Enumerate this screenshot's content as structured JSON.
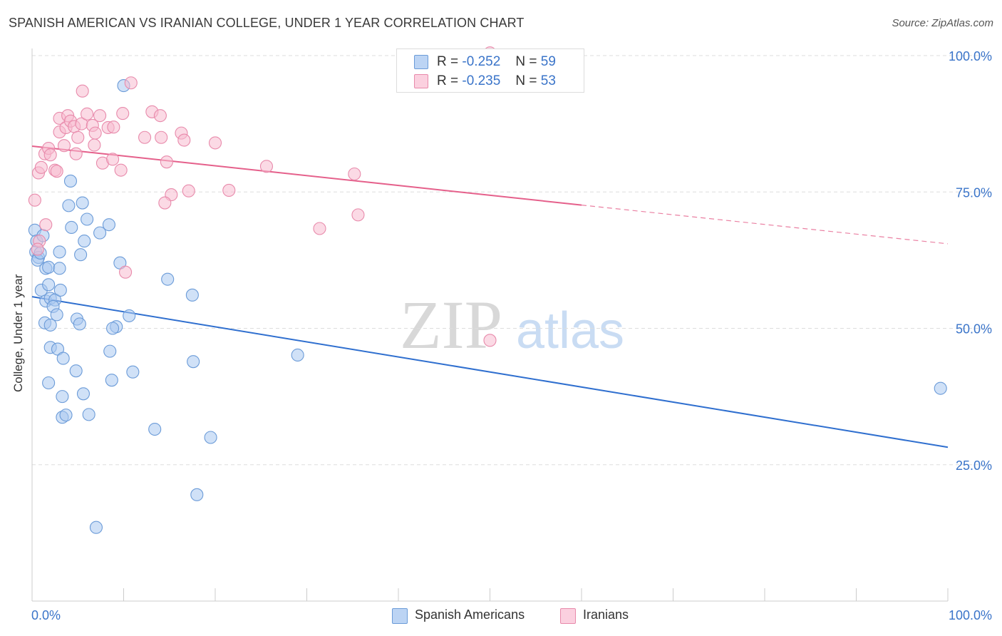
{
  "title": "SPANISH AMERICAN VS IRANIAN COLLEGE, UNDER 1 YEAR CORRELATION CHART",
  "source": "Source: ZipAtlas.com",
  "watermark": {
    "zip": "ZIP",
    "atlas": "atlas"
  },
  "legend_top": {
    "rows": [
      {
        "r_label": "R =",
        "r_value": "-0.252",
        "n_label": "N =",
        "n_value": "59"
      },
      {
        "r_label": "R =",
        "r_value": "-0.235",
        "n_label": "N =",
        "n_value": "53"
      }
    ]
  },
  "legend_bottom": [
    "Spanish Americans",
    "Iranians"
  ],
  "colors": {
    "blue_fill": "#a9c8f0",
    "blue_stroke": "#6b9bd8",
    "blue_line": "#2f6fcf",
    "pink_fill": "#f7bcd0",
    "pink_stroke": "#e88aab",
    "pink_line": "#e5608b",
    "tick_label": "#3a74c9",
    "grid": "#dddddd"
  },
  "chart_data": {
    "type": "scatter",
    "title": "SPANISH AMERICAN VS IRANIAN COLLEGE, UNDER 1 YEAR CORRELATION CHART",
    "xlabel": "",
    "ylabel": "College, Under 1 year",
    "xlim": [
      0,
      100
    ],
    "ylim": [
      0,
      105
    ],
    "x_tick_labels": [
      {
        "value": 0,
        "label": "0.0%"
      },
      {
        "value": 100,
        "label": "100.0%"
      }
    ],
    "y_tick_labels": [
      {
        "value": 25,
        "label": "25.0%"
      },
      {
        "value": 50,
        "label": "50.0%"
      },
      {
        "value": 75,
        "label": "75.0%"
      },
      {
        "value": 100,
        "label": "100.0%"
      }
    ],
    "series": [
      {
        "name": "Spanish Americans",
        "r": -0.252,
        "n": 59,
        "trend": {
          "x0": 0,
          "y0": 55.8,
          "x1": 100,
          "y1": 28.2
        },
        "points": [
          [
            0.3,
            68
          ],
          [
            0.5,
            66
          ],
          [
            0.4,
            64
          ],
          [
            0.7,
            63
          ],
          [
            0.6,
            62.5
          ],
          [
            1.2,
            67
          ],
          [
            1.5,
            61
          ],
          [
            1.8,
            61.2
          ],
          [
            1.0,
            57
          ],
          [
            1.5,
            55
          ],
          [
            2.0,
            55.5
          ],
          [
            2.5,
            55.2
          ],
          [
            2.3,
            54
          ],
          [
            1.4,
            51
          ],
          [
            2.0,
            50.6
          ],
          [
            2.7,
            52.5
          ],
          [
            3.0,
            64
          ],
          [
            3.1,
            57
          ],
          [
            4.2,
            77
          ],
          [
            4.0,
            72.5
          ],
          [
            4.3,
            68.5
          ],
          [
            5.5,
            73
          ],
          [
            5.7,
            66
          ],
          [
            5.3,
            63.5
          ],
          [
            6.0,
            70
          ],
          [
            7.4,
            67.5
          ],
          [
            8.4,
            69
          ],
          [
            9.6,
            62
          ],
          [
            10.0,
            94.5
          ],
          [
            9.2,
            50.3
          ],
          [
            8.8,
            50
          ],
          [
            10.6,
            52.3
          ],
          [
            2.0,
            46.5
          ],
          [
            2.8,
            46.2
          ],
          [
            3.4,
            44.5
          ],
          [
            4.9,
            51.7
          ],
          [
            5.2,
            50.8
          ],
          [
            8.5,
            45.8
          ],
          [
            11.0,
            42
          ],
          [
            4.8,
            42.2
          ],
          [
            1.8,
            40
          ],
          [
            3.3,
            37.5
          ],
          [
            5.6,
            38
          ],
          [
            8.7,
            40.5
          ],
          [
            17.6,
            43.9
          ],
          [
            29.0,
            45.1
          ],
          [
            14.8,
            59
          ],
          [
            17.5,
            56.1
          ],
          [
            3.3,
            33.7
          ],
          [
            3.7,
            34.1
          ],
          [
            6.2,
            34.2
          ],
          [
            13.4,
            31.5
          ],
          [
            19.5,
            30
          ],
          [
            18.0,
            19.5
          ],
          [
            7.0,
            13.5
          ],
          [
            99.2,
            39
          ],
          [
            1.8,
            58
          ],
          [
            3.0,
            61
          ],
          [
            0.9,
            63.8
          ]
        ]
      },
      {
        "name": "Iranians",
        "r": -0.235,
        "n": 53,
        "trend": {
          "x0": 0,
          "y0": 83.4,
          "x1": 60,
          "y1": 72.6
        },
        "trend_dashed": {
          "x0": 60,
          "y0": 72.6,
          "x1": 100,
          "y1": 65.5
        },
        "points": [
          [
            0.3,
            73.5
          ],
          [
            0.7,
            78.5
          ],
          [
            1.0,
            79.5
          ],
          [
            1.4,
            82
          ],
          [
            1.8,
            83
          ],
          [
            2.0,
            81.8
          ],
          [
            2.5,
            79
          ],
          [
            2.7,
            78.8
          ],
          [
            3.0,
            86
          ],
          [
            3.0,
            88.5
          ],
          [
            3.5,
            83.5
          ],
          [
            3.7,
            86.8
          ],
          [
            3.9,
            89
          ],
          [
            4.2,
            88
          ],
          [
            4.6,
            87
          ],
          [
            4.8,
            82
          ],
          [
            5.0,
            85
          ],
          [
            5.4,
            87.5
          ],
          [
            5.5,
            93.5
          ],
          [
            6.0,
            89.3
          ],
          [
            6.6,
            87.2
          ],
          [
            6.8,
            83.6
          ],
          [
            6.9,
            85.8
          ],
          [
            7.4,
            89
          ],
          [
            7.7,
            80.3
          ],
          [
            8.3,
            86.8
          ],
          [
            8.8,
            81
          ],
          [
            8.9,
            86.9
          ],
          [
            9.7,
            79
          ],
          [
            9.9,
            89.4
          ],
          [
            10.8,
            95
          ],
          [
            12.3,
            85
          ],
          [
            13.1,
            89.7
          ],
          [
            14.0,
            89
          ],
          [
            14.1,
            85
          ],
          [
            14.7,
            80.5
          ],
          [
            15.2,
            74.5
          ],
          [
            14.5,
            73
          ],
          [
            16.3,
            85.8
          ],
          [
            16.6,
            84.5
          ],
          [
            17.1,
            75.2
          ],
          [
            20.0,
            84
          ],
          [
            21.5,
            75.3
          ],
          [
            25.6,
            79.7
          ],
          [
            31.4,
            68.3
          ],
          [
            35.2,
            78.3
          ],
          [
            35.6,
            70.8
          ],
          [
            50.0,
            100.5
          ],
          [
            50.0,
            47.8
          ],
          [
            1.5,
            69
          ],
          [
            0.8,
            66
          ],
          [
            0.6,
            64.5
          ],
          [
            10.2,
            60.3
          ]
        ]
      }
    ]
  }
}
